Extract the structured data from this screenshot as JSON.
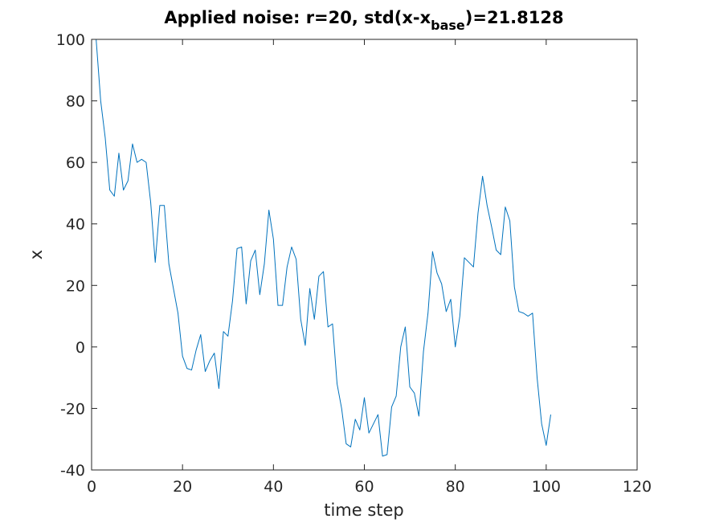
{
  "chart_data": {
    "type": "line",
    "title": {
      "prefix": "Applied noise: r=20, std(x-x",
      "subscript": "base",
      "suffix": ")=21.8128"
    },
    "xlabel": "time step",
    "ylabel": "x",
    "xlim": [
      0,
      120
    ],
    "ylim": [
      -40,
      100
    ],
    "xticks": [
      0,
      20,
      40,
      60,
      80,
      100,
      120
    ],
    "yticks": [
      -40,
      -20,
      0,
      20,
      40,
      60,
      80,
      100
    ],
    "grid": false,
    "legend": "none",
    "line_color": "#0072bd",
    "series": [
      {
        "x": [
          1,
          2,
          3,
          4,
          5,
          6,
          7,
          8,
          9,
          10,
          11,
          12,
          13,
          14,
          15,
          16,
          17,
          18,
          19,
          20,
          21,
          22,
          23,
          24,
          25,
          26,
          27,
          28,
          29,
          30,
          31,
          32,
          33,
          34,
          35,
          36,
          37,
          38,
          39,
          40,
          41,
          42,
          43,
          44,
          45,
          46,
          47,
          48,
          49,
          50,
          51,
          52,
          53,
          54,
          55,
          56,
          57,
          58,
          59,
          60,
          61,
          62,
          63,
          64,
          65,
          66,
          67,
          68,
          69,
          70,
          71,
          72,
          73,
          74,
          75,
          76,
          77,
          78,
          79,
          80,
          81,
          82,
          83,
          84,
          85,
          86,
          87,
          88,
          89,
          90,
          91,
          92,
          93,
          94,
          95,
          96,
          97,
          98,
          99,
          100,
          101
        ],
        "values": [
          100,
          80,
          68,
          51,
          49,
          63,
          51,
          54,
          66,
          60,
          61,
          60,
          47,
          27.5,
          46,
          46,
          27,
          19,
          11,
          -3,
          -7,
          -7.5,
          -1,
          4,
          -8,
          -4.5,
          -2,
          -13.5,
          5,
          3.5,
          15,
          32,
          32.5,
          14,
          28,
          31.5,
          17,
          27,
          44.5,
          35,
          13.5,
          13.5,
          26,
          32.5,
          28.5,
          9,
          0.5,
          19,
          9,
          23,
          24.5,
          6.5,
          7.5,
          -12,
          -20,
          -31.5,
          -32.5,
          -23.5,
          -27,
          -16.5,
          -28,
          -25,
          -22,
          -35.5,
          -35,
          -19.5,
          -16,
          0,
          6.5,
          -13,
          -15,
          -22.5,
          -1.5,
          11,
          31,
          24,
          20.5,
          11.5,
          15.5,
          0,
          10,
          29,
          27.5,
          26,
          43.5,
          55.5,
          46,
          39,
          31.5,
          30,
          45.5,
          41,
          19.5,
          11.5,
          11,
          10,
          11,
          -10,
          -25,
          -32,
          -22
        ]
      }
    ]
  }
}
